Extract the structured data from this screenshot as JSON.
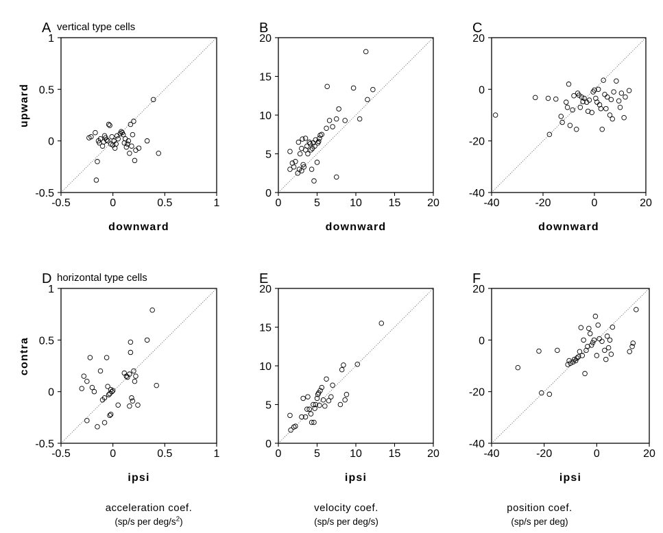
{
  "figure": {
    "bottom_labels": [
      {
        "line1": "acceleration coef.",
        "line2": "(sp/s per  deg/s",
        "sup": "2",
        "tail": ")"
      },
      {
        "line1": "velocity coef.",
        "line2": "(sp/s per deg/s)",
        "sup": "",
        "tail": ""
      },
      {
        "line1": "position coef.",
        "line2": "(sp/s per deg)",
        "sup": "",
        "tail": ""
      }
    ]
  },
  "chart_data": [
    {
      "panel": "A",
      "type": "scatter",
      "title": "vertical type cells",
      "xlabel": "downward",
      "ylabel": "upward",
      "xlim": [
        -0.5,
        1
      ],
      "ylim": [
        -0.5,
        1
      ],
      "xticks": [
        "-0.5",
        "0",
        "0.5",
        "1"
      ],
      "yticks": [
        "-0.5",
        "0",
        "0.5",
        "1"
      ],
      "diagonal": true,
      "grid": false,
      "points": [
        [
          -0.23,
          0.03
        ],
        [
          -0.21,
          0.04
        ],
        [
          -0.17,
          0.08
        ],
        [
          -0.14,
          0.0
        ],
        [
          -0.13,
          -0.02
        ],
        [
          -0.12,
          0.02
        ],
        [
          -0.1,
          -0.05
        ],
        [
          -0.09,
          -0.01
        ],
        [
          -0.08,
          0.05
        ],
        [
          -0.07,
          0.03
        ],
        [
          -0.06,
          0.01
        ],
        [
          -0.05,
          0.0
        ],
        [
          -0.04,
          0.16
        ],
        [
          -0.03,
          0.15
        ],
        [
          -0.02,
          -0.03
        ],
        [
          -0.01,
          0.04
        ],
        [
          0.0,
          -0.04
        ],
        [
          0.01,
          0.0
        ],
        [
          0.02,
          -0.07
        ],
        [
          0.03,
          -0.03
        ],
        [
          0.04,
          0.05
        ],
        [
          0.05,
          0.02
        ],
        [
          0.07,
          0.07
        ],
        [
          0.08,
          0.09
        ],
        [
          0.09,
          0.08
        ],
        [
          0.1,
          0.06
        ],
        [
          0.11,
          -0.02
        ],
        [
          0.12,
          0.02
        ],
        [
          0.13,
          -0.06
        ],
        [
          0.14,
          -0.03
        ],
        [
          0.15,
          0.0
        ],
        [
          0.16,
          -0.12
        ],
        [
          0.17,
          0.16
        ],
        [
          0.18,
          -0.05
        ],
        [
          0.19,
          0.06
        ],
        [
          0.2,
          0.19
        ],
        [
          0.21,
          -0.19
        ],
        [
          0.22,
          -0.09
        ],
        [
          0.25,
          -0.07
        ],
        [
          0.33,
          0.0
        ],
        [
          0.39,
          0.4
        ],
        [
          0.44,
          -0.12
        ],
        [
          -0.15,
          -0.2
        ],
        [
          -0.16,
          -0.38
        ]
      ]
    },
    {
      "panel": "B",
      "type": "scatter",
      "title": "",
      "xlabel": "downward",
      "ylabel": "",
      "xlim": [
        0,
        20
      ],
      "ylim": [
        0,
        20
      ],
      "xticks": [
        "0",
        "5",
        "10",
        "15",
        "20"
      ],
      "yticks": [
        "0",
        "5",
        "10",
        "15",
        "20"
      ],
      "diagonal": true,
      "grid": false,
      "points": [
        [
          1.5,
          3.0
        ],
        [
          1.5,
          5.3
        ],
        [
          1.8,
          3.8
        ],
        [
          2.0,
          3.3
        ],
        [
          2.2,
          4.0
        ],
        [
          2.5,
          2.5
        ],
        [
          2.6,
          6.5
        ],
        [
          2.7,
          3.0
        ],
        [
          2.8,
          5.0
        ],
        [
          3.0,
          2.8
        ],
        [
          3.0,
          5.7
        ],
        [
          3.1,
          6.9
        ],
        [
          3.2,
          3.6
        ],
        [
          3.3,
          3.3
        ],
        [
          3.5,
          5.5
        ],
        [
          3.5,
          7.0
        ],
        [
          3.7,
          6.0
        ],
        [
          3.8,
          5.0
        ],
        [
          4.0,
          6.5
        ],
        [
          4.1,
          6.3
        ],
        [
          4.2,
          5.5
        ],
        [
          4.3,
          3.0
        ],
        [
          4.4,
          5.7
        ],
        [
          4.5,
          6.4
        ],
        [
          4.6,
          1.5
        ],
        [
          4.7,
          6.0
        ],
        [
          4.8,
          6.8
        ],
        [
          5.0,
          3.9
        ],
        [
          5.1,
          6.4
        ],
        [
          5.2,
          6.6
        ],
        [
          5.3,
          7.0
        ],
        [
          5.4,
          7.4
        ],
        [
          5.6,
          7.5
        ],
        [
          6.2,
          8.3
        ],
        [
          6.3,
          13.7
        ],
        [
          6.6,
          9.3
        ],
        [
          7.0,
          8.5
        ],
        [
          7.5,
          2.0
        ],
        [
          7.5,
          9.5
        ],
        [
          7.8,
          10.8
        ],
        [
          8.6,
          9.3
        ],
        [
          9.7,
          13.5
        ],
        [
          10.5,
          9.5
        ],
        [
          11.3,
          18.2
        ],
        [
          11.5,
          12.0
        ],
        [
          12.2,
          13.3
        ]
      ]
    },
    {
      "panel": "C",
      "type": "scatter",
      "title": "",
      "xlabel": "downward",
      "ylabel": "",
      "xlim": [
        -40,
        20
      ],
      "ylim": [
        -40,
        20
      ],
      "xticks": [
        "-40",
        "-20",
        "0",
        "20"
      ],
      "yticks": [
        "-40",
        "-20",
        "0",
        "20"
      ],
      "diagonal": true,
      "grid": false,
      "points": [
        [
          -38.5,
          -10.0
        ],
        [
          -23.0,
          -3.2
        ],
        [
          -18.0,
          -3.5
        ],
        [
          -17.5,
          -17.5
        ],
        [
          -15.0,
          -3.8
        ],
        [
          -13.0,
          -10.5
        ],
        [
          -12.5,
          -12.8
        ],
        [
          -11.0,
          -5.0
        ],
        [
          -10.5,
          -7.0
        ],
        [
          -10.0,
          2.0
        ],
        [
          -9.5,
          -14.0
        ],
        [
          -8.5,
          -8.0
        ],
        [
          -8.0,
          -2.5
        ],
        [
          -7.0,
          -15.5
        ],
        [
          -6.5,
          -1.5
        ],
        [
          -6.0,
          -2.3
        ],
        [
          -5.5,
          -7.0
        ],
        [
          -5.0,
          -3.0
        ],
        [
          -4.5,
          -4.8
        ],
        [
          -4.0,
          -3.5
        ],
        [
          -3.0,
          -5.0
        ],
        [
          -2.5,
          -8.5
        ],
        [
          -2.0,
          -4.2
        ],
        [
          -1.0,
          -9.0
        ],
        [
          -0.5,
          -1.0
        ],
        [
          0.0,
          -0.3
        ],
        [
          0.5,
          -3.5
        ],
        [
          1.0,
          -5.0
        ],
        [
          1.5,
          0.0
        ],
        [
          2.0,
          -6.0
        ],
        [
          2.5,
          -7.5
        ],
        [
          3.0,
          -15.5
        ],
        [
          3.5,
          3.5
        ],
        [
          4.0,
          -2.0
        ],
        [
          4.5,
          -7.5
        ],
        [
          5.0,
          -3.0
        ],
        [
          6.0,
          -10.0
        ],
        [
          6.5,
          -4.0
        ],
        [
          7.0,
          -11.5
        ],
        [
          7.5,
          -1.0
        ],
        [
          8.5,
          3.2
        ],
        [
          9.5,
          -4.5
        ],
        [
          10.0,
          -7.0
        ],
        [
          10.5,
          -1.5
        ],
        [
          11.5,
          -11.0
        ],
        [
          12.0,
          -3.0
        ],
        [
          13.5,
          -0.5
        ]
      ]
    },
    {
      "panel": "D",
      "type": "scatter",
      "title": "horizontal type cells",
      "xlabel": "ipsi",
      "ylabel": "contra",
      "xlim": [
        -0.5,
        1
      ],
      "ylim": [
        -0.5,
        1
      ],
      "xticks": [
        "-0.5",
        "0",
        "0.5",
        "1"
      ],
      "yticks": [
        "-0.5",
        "0",
        "0.5",
        "1"
      ],
      "diagonal": true,
      "grid": false,
      "points": [
        [
          -0.3,
          0.03
        ],
        [
          -0.28,
          0.15
        ],
        [
          -0.25,
          0.1
        ],
        [
          -0.22,
          0.33
        ],
        [
          -0.2,
          0.04
        ],
        [
          -0.18,
          0.0
        ],
        [
          -0.25,
          -0.28
        ],
        [
          -0.15,
          -0.34
        ],
        [
          -0.12,
          0.2
        ],
        [
          -0.1,
          -0.08
        ],
        [
          -0.08,
          -0.06
        ],
        [
          -0.06,
          0.33
        ],
        [
          -0.05,
          0.05
        ],
        [
          -0.04,
          -0.03
        ],
        [
          -0.03,
          -0.02
        ],
        [
          -0.02,
          0.02
        ],
        [
          -0.01,
          0.0
        ],
        [
          0.0,
          0.01
        ],
        [
          -0.08,
          -0.3
        ],
        [
          -0.03,
          -0.23
        ],
        [
          -0.02,
          -0.22
        ],
        [
          0.05,
          -0.13
        ],
        [
          0.11,
          0.18
        ],
        [
          0.13,
          0.15
        ],
        [
          0.14,
          0.14
        ],
        [
          0.16,
          0.17
        ],
        [
          0.17,
          0.48
        ],
        [
          0.17,
          0.38
        ],
        [
          0.18,
          -0.06
        ],
        [
          0.19,
          -0.09
        ],
        [
          0.2,
          0.2
        ],
        [
          0.21,
          0.1
        ],
        [
          0.16,
          -0.14
        ],
        [
          0.22,
          0.15
        ],
        [
          0.24,
          -0.13
        ],
        [
          0.33,
          0.5
        ],
        [
          0.38,
          0.79
        ],
        [
          0.42,
          0.06
        ]
      ]
    },
    {
      "panel": "E",
      "type": "scatter",
      "title": "",
      "xlabel": "ipsi",
      "ylabel": "",
      "xlim": [
        0,
        20
      ],
      "ylim": [
        0,
        20
      ],
      "xticks": [
        "0",
        "5",
        "10",
        "15",
        "20"
      ],
      "yticks": [
        "0",
        "5",
        "10",
        "15",
        "20"
      ],
      "diagonal": true,
      "grid": false,
      "points": [
        [
          1.5,
          3.6
        ],
        [
          1.6,
          1.7
        ],
        [
          2.0,
          2.1
        ],
        [
          2.2,
          2.2
        ],
        [
          3.0,
          3.4
        ],
        [
          3.2,
          5.8
        ],
        [
          3.5,
          3.4
        ],
        [
          3.7,
          4.4
        ],
        [
          3.8,
          6.0
        ],
        [
          4.0,
          4.4
        ],
        [
          4.2,
          3.8
        ],
        [
          4.3,
          2.7
        ],
        [
          4.5,
          5.0
        ],
        [
          4.6,
          2.7
        ],
        [
          4.7,
          4.5
        ],
        [
          4.8,
          5.0
        ],
        [
          5.0,
          5.8
        ],
        [
          5.1,
          6.3
        ],
        [
          5.2,
          6.5
        ],
        [
          5.3,
          4.9
        ],
        [
          5.4,
          6.8
        ],
        [
          5.6,
          7.2
        ],
        [
          6.0,
          4.8
        ],
        [
          6.2,
          8.3
        ],
        [
          6.5,
          5.5
        ],
        [
          7.0,
          7.5
        ],
        [
          8.0,
          5.0
        ],
        [
          8.2,
          9.5
        ],
        [
          8.4,
          10.1
        ],
        [
          8.6,
          5.6
        ],
        [
          8.8,
          6.3
        ],
        [
          10.2,
          10.2
        ],
        [
          13.3,
          15.5
        ],
        [
          6.8,
          6.0
        ],
        [
          5.8,
          5.6
        ]
      ]
    },
    {
      "panel": "F",
      "type": "scatter",
      "title": "",
      "xlabel": "ipsi",
      "ylabel": "",
      "xlim": [
        -40,
        20
      ],
      "ylim": [
        -40,
        20
      ],
      "xticks": [
        "-40",
        "-20",
        "0",
        "20"
      ],
      "yticks": [
        "-40",
        "-20",
        "0",
        "20"
      ],
      "diagonal": true,
      "grid": false,
      "points": [
        [
          -30.0,
          -10.7
        ],
        [
          -22.0,
          -4.3
        ],
        [
          -21.0,
          -20.5
        ],
        [
          -18.0,
          -21.0
        ],
        [
          -15.0,
          -4.0
        ],
        [
          -11.0,
          -9.5
        ],
        [
          -10.5,
          -8.0
        ],
        [
          -10.0,
          -9.0
        ],
        [
          -9.0,
          -8.5
        ],
        [
          -8.5,
          -7.5
        ],
        [
          -8.0,
          -8.0
        ],
        [
          -7.5,
          -7.0
        ],
        [
          -7.0,
          -6.5
        ],
        [
          -6.5,
          -4.5
        ],
        [
          -6.0,
          4.8
        ],
        [
          -5.5,
          -6.0
        ],
        [
          -5.0,
          0.0
        ],
        [
          -4.5,
          -13.0
        ],
        [
          -4.0,
          -4.0
        ],
        [
          -3.5,
          -2.5
        ],
        [
          -3.0,
          4.5
        ],
        [
          -2.5,
          2.5
        ],
        [
          -2.0,
          -2.0
        ],
        [
          -1.5,
          -1.0
        ],
        [
          -1.0,
          0.0
        ],
        [
          -0.5,
          9.2
        ],
        [
          0.0,
          -6.0
        ],
        [
          0.5,
          5.8
        ],
        [
          1.0,
          0.5
        ],
        [
          2.0,
          -0.5
        ],
        [
          3.0,
          -4.0
        ],
        [
          3.5,
          -7.5
        ],
        [
          4.0,
          1.5
        ],
        [
          4.5,
          -3.0
        ],
        [
          5.0,
          0.0
        ],
        [
          5.5,
          -5.5
        ],
        [
          6.0,
          5.0
        ],
        [
          12.5,
          -4.5
        ],
        [
          13.5,
          -2.5
        ],
        [
          13.8,
          -1.2
        ],
        [
          15.0,
          11.8
        ]
      ]
    }
  ]
}
